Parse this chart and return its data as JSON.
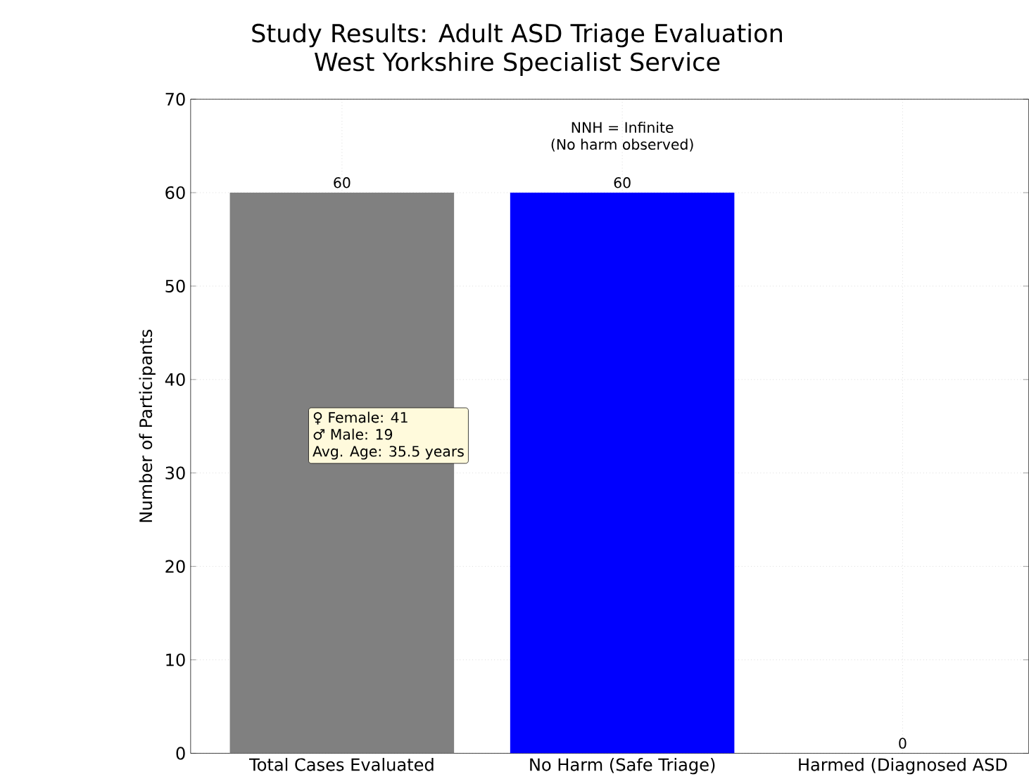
{
  "chart_data": {
    "type": "bar",
    "title": "Study Results: Adult ASD Triage Evaluation",
    "subtitle": "West Yorkshire Specialist Service",
    "ylabel": "Number of Participants",
    "categories": [
      "Total Cases Evaluated",
      "No Harm (Safe Triage)",
      "Harmed (Diagnosed ASD"
    ],
    "values": [
      60,
      60,
      0
    ],
    "colors": [
      "#808080",
      "#0000ff",
      "#ff0000"
    ],
    "ylim": [
      0,
      70
    ],
    "yticks": [
      0,
      10,
      20,
      30,
      40,
      50,
      60,
      70
    ],
    "grid": true,
    "data_labels": true,
    "annotations": [
      "NNH = Infinite",
      "(No harm observed)",
      "♀ Female: 41",
      "♂ Male: 19",
      "Avg. Age: 35.5 years"
    ]
  }
}
